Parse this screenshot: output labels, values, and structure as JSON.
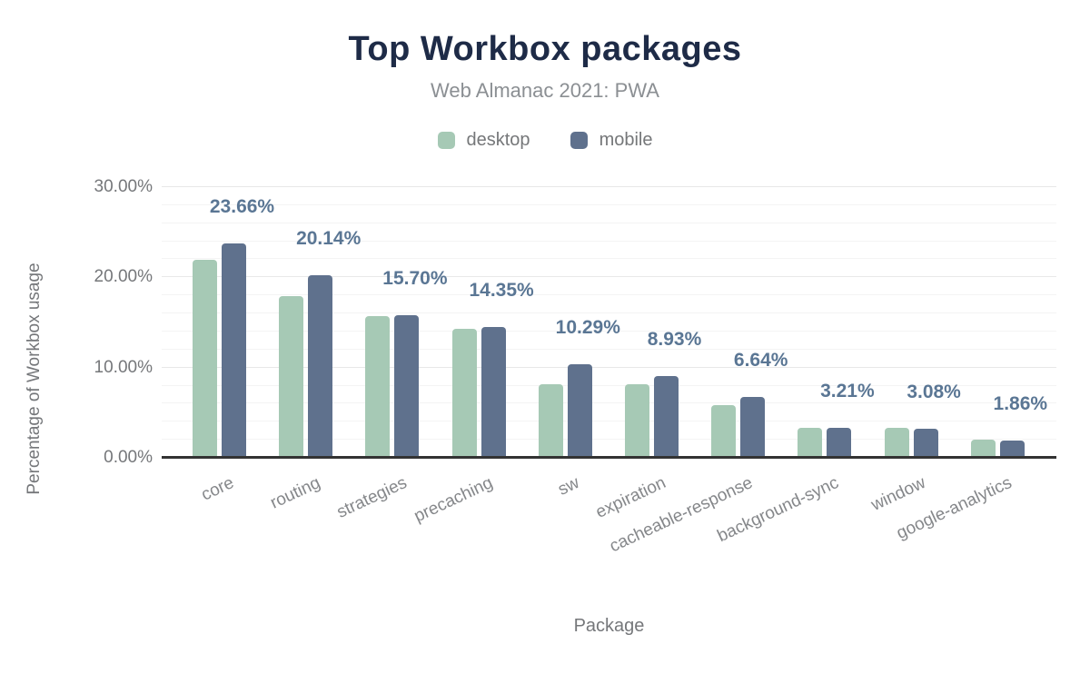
{
  "chart_data": {
    "type": "bar",
    "title": "Top Workbox packages",
    "subtitle": "Web Almanac 2021: PWA",
    "xlabel": "Package",
    "ylabel": "Percentage of Workbox usage",
    "categories": [
      "core",
      "routing",
      "strategies",
      "precaching",
      "sw",
      "expiration",
      "cacheable-response",
      "background-sync",
      "window",
      "google-analytics"
    ],
    "series": [
      {
        "name": "desktop",
        "color": "#a6c9b5",
        "values": [
          21.8,
          17.8,
          15.6,
          14.2,
          8.1,
          8.1,
          5.7,
          3.2,
          3.2,
          1.9
        ]
      },
      {
        "name": "mobile",
        "color": "#5f718d",
        "values": [
          23.66,
          20.14,
          15.7,
          14.35,
          10.29,
          8.93,
          6.64,
          3.21,
          3.08,
          1.86
        ]
      }
    ],
    "data_labels": [
      "23.66%",
      "20.14%",
      "15.70%",
      "14.35%",
      "10.29%",
      "8.93%",
      "6.64%",
      "3.21%",
      "3.08%",
      "1.86%"
    ],
    "data_labels_series": "mobile",
    "y_ticks": [
      {
        "v": 0,
        "label": "0.00%"
      },
      {
        "v": 10,
        "label": "10.00%"
      },
      {
        "v": 20,
        "label": "20.00%"
      },
      {
        "v": 30,
        "label": "30.00%"
      }
    ],
    "ylim": [
      0,
      30
    ],
    "minor_grid_step_pct": 2,
    "major_grid_step_pct": 10,
    "grid": "horizontal",
    "legend_position": "top",
    "colors": {
      "title": "#1e2b47",
      "subtitle": "#8b8f93",
      "axis_text": "#75777a",
      "data_label": "#5a7694",
      "axis_line": "#333333"
    }
  }
}
